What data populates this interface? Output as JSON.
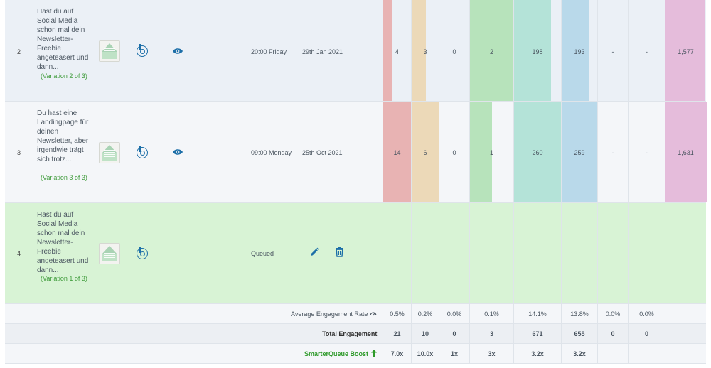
{
  "rows": [
    {
      "index": "2",
      "title": "Hast du auf Social Media schon mal dein Newsletter-Freebie angeteasert und dann...",
      "variation": "(Variation 2 of 3)",
      "time": "20:00 Friday",
      "date": "29th Jan 2021",
      "metrics": [
        "4",
        "3",
        "0",
        "2",
        "198",
        "193",
        "-",
        "-",
        "1,577"
      ]
    },
    {
      "index": "3",
      "title": "Du hast eine Landingpage für deinen Newsletter, aber irgendwie trägt sich trotz...",
      "variation": "(Variation 3 of 3)",
      "time": "09:00 Monday",
      "date": "25th Oct 2021",
      "metrics": [
        "14",
        "6",
        "0",
        "1",
        "260",
        "259",
        "-",
        "-",
        "1,631"
      ]
    },
    {
      "index": "4",
      "title": "Hast du auf Social Media schon mal dein Newsletter-Freebie angeteasert und dann...",
      "variation": "(Variation 1 of 3)",
      "status": "Queued"
    }
  ],
  "footer": {
    "avg_label": "Average Engagement Rate",
    "avg_values": [
      "0.5%",
      "0.2%",
      "0.0%",
      "0.1%",
      "14.1%",
      "13.8%",
      "0.0%",
      "0.0%"
    ],
    "total_label": "Total Engagement",
    "total_values": [
      "21",
      "10",
      "0",
      "3",
      "671",
      "655",
      "0",
      "0"
    ],
    "boost_label": "SmarterQueue Boost",
    "boost_values": [
      "7.0x",
      "10.0x",
      "1x",
      "3x",
      "3.2x",
      "3.2x"
    ]
  },
  "colors": {
    "bar_red": "#e8b3b3",
    "bar_tan": "#ecd9b8",
    "bar_green": "#b7e3bb",
    "bar_teal": "#b4e3d8",
    "bar_blue": "#b9d9ea",
    "bar_pink": "#e5bcdb",
    "accent_blue": "#1d6fa8",
    "boost_green": "#2e9a2a",
    "queued_row": "#d8f3d5"
  },
  "icons": {
    "buffer": "buffer-icon",
    "preview": "eye-icon",
    "edit": "pencil-icon",
    "delete": "trash-icon",
    "info": "gauge-icon",
    "boost": "arrow-up-icon"
  }
}
